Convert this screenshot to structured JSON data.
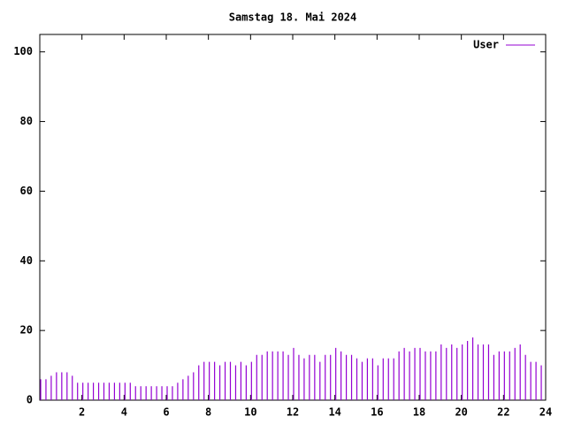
{
  "chart_data": {
    "type": "impulse",
    "title": "Samstag 18. Mai 2024",
    "x": [
      0,
      0.25,
      0.5,
      0.75,
      1,
      1.25,
      1.5,
      1.75,
      2,
      2.25,
      2.5,
      2.75,
      3,
      3.25,
      3.5,
      3.75,
      4,
      4.25,
      4.5,
      4.75,
      5,
      5.25,
      5.5,
      5.75,
      6,
      6.25,
      6.5,
      6.75,
      7,
      7.25,
      7.5,
      7.75,
      8,
      8.25,
      8.5,
      8.75,
      9,
      9.25,
      9.5,
      9.75,
      10,
      10.25,
      10.5,
      10.75,
      11,
      11.25,
      11.5,
      11.75,
      12,
      12.25,
      12.5,
      12.75,
      13,
      13.25,
      13.5,
      13.75,
      14,
      14.25,
      14.5,
      14.75,
      15,
      15.25,
      15.5,
      15.75,
      16,
      16.25,
      16.5,
      16.75,
      17,
      17.25,
      17.5,
      17.75,
      18,
      18.25,
      18.5,
      18.75,
      19,
      19.25,
      19.5,
      19.75,
      20,
      20.25,
      20.5,
      20.75,
      21,
      21.25,
      21.5,
      21.75,
      22,
      22.25,
      22.5,
      22.75,
      23,
      23.25,
      23.5,
      23.75
    ],
    "series": [
      {
        "name": "User",
        "color": "#9400d3",
        "values": [
          6,
          6,
          7,
          8,
          8,
          8,
          7,
          5,
          5,
          5,
          5,
          5,
          5,
          5,
          5,
          5,
          5,
          5,
          4,
          4,
          4,
          4,
          4,
          4,
          4,
          4,
          5,
          6,
          7,
          8,
          10,
          11,
          11,
          11,
          10,
          11,
          11,
          10,
          11,
          10,
          11,
          13,
          13,
          14,
          14,
          14,
          14,
          13,
          15,
          13,
          12,
          13,
          13,
          11,
          13,
          13,
          15,
          14,
          13,
          13,
          12,
          11,
          12,
          12,
          10,
          12,
          12,
          12,
          14,
          15,
          14,
          15,
          15,
          14,
          14,
          14,
          16,
          15,
          16,
          15,
          16,
          17,
          18,
          16,
          16,
          16,
          13,
          14,
          14,
          14,
          15,
          16,
          13,
          11,
          11,
          10
        ]
      }
    ],
    "xlim": [
      0,
      24
    ],
    "xticks": [
      2,
      4,
      6,
      8,
      10,
      12,
      14,
      16,
      18,
      20,
      22,
      24
    ],
    "ylim": [
      0,
      105
    ],
    "yticks": [
      0,
      20,
      40,
      60,
      80,
      100
    ],
    "legend": "top-right"
  }
}
